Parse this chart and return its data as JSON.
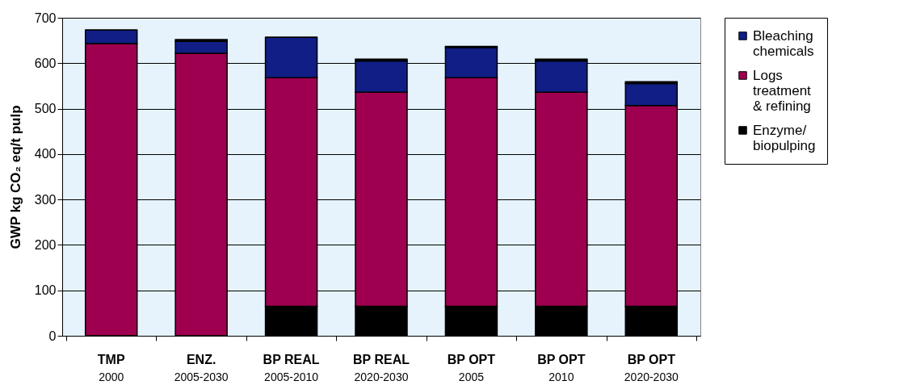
{
  "chart_data": {
    "type": "bar",
    "stacked": true,
    "ylabel": "GWP kg CO₂ eq/t pulp",
    "categories": [
      "TMP\n2000",
      "ENZ.\n2005-2030",
      "BP REAL\n2005-2010",
      "BP REAL\n2020-2030",
      "BP OPT\n2005",
      "BP OPT\n2010",
      "BP OPT\n2020-2030"
    ],
    "series": [
      {
        "name": "Enzyme/biopulping",
        "color": "#000000",
        "values": [
          0,
          0,
          65,
          65,
          65,
          65,
          65
        ]
      },
      {
        "name": "Logs treatment & refining",
        "color": "#9e004f",
        "values": [
          643,
          622,
          503,
          471,
          503,
          471,
          442
        ]
      },
      {
        "name": "Bleaching chemicals",
        "color": "#101e86",
        "values": [
          30,
          26,
          89,
          69,
          66,
          69,
          48
        ]
      },
      {
        "color": "#000000",
        "values": [
          0,
          4,
          0,
          4,
          3,
          4,
          4
        ]
      }
    ],
    "ylim": [
      0,
      700
    ],
    "yticks": [
      0,
      100,
      200,
      300,
      400,
      500,
      600,
      700
    ],
    "grid": "y",
    "legend": "top right"
  }
}
